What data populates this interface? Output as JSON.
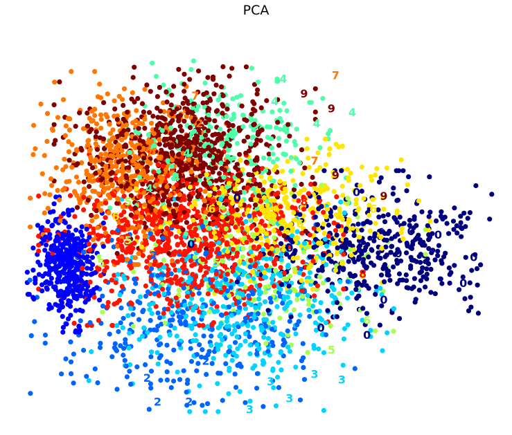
{
  "chart_data": {
    "type": "scatter",
    "title": "PCA",
    "xlabel": "",
    "ylabel": "",
    "axes_visible": false,
    "grid": false,
    "legend": "none",
    "xlim": [
      -1.2,
      1.0
    ],
    "ylim": [
      -0.95,
      0.95
    ],
    "classes": [
      {
        "label": "0",
        "color": "#00007f",
        "center": [
          0.48,
          -0.05
        ],
        "spread": [
          0.27,
          0.16
        ],
        "count": 420
      },
      {
        "label": "1",
        "color": "#0000ff",
        "center": [
          -1.02,
          -0.14
        ],
        "spread": [
          0.07,
          0.14
        ],
        "count": 380
      },
      {
        "label": "2",
        "color": "#0064ff",
        "center": [
          -0.42,
          -0.45
        ],
        "spread": [
          0.33,
          0.22
        ],
        "count": 330
      },
      {
        "label": "3",
        "color": "#00d4ff",
        "center": [
          -0.18,
          -0.36
        ],
        "spread": [
          0.28,
          0.22
        ],
        "count": 420
      },
      {
        "label": "4",
        "color": "#4dffa9",
        "center": [
          -0.25,
          0.52
        ],
        "spread": [
          0.25,
          0.2
        ],
        "count": 240
      },
      {
        "label": "5",
        "color": "#a9ff4d",
        "center": [
          -0.08,
          -0.18
        ],
        "spread": [
          0.3,
          0.18
        ],
        "count": 150
      },
      {
        "label": "6",
        "color": "#ffe600",
        "center": [
          0.02,
          0.12
        ],
        "spread": [
          0.27,
          0.16
        ],
        "count": 400
      },
      {
        "label": "7",
        "color": "#ff7700",
        "center": [
          -0.72,
          0.38
        ],
        "spread": [
          0.18,
          0.2
        ],
        "count": 500
      },
      {
        "label": "8",
        "color": "#ff1300",
        "center": [
          -0.42,
          0.0
        ],
        "spread": [
          0.28,
          0.18
        ],
        "count": 780
      },
      {
        "label": "9",
        "color": "#7f0000",
        "center": [
          -0.45,
          0.44
        ],
        "spread": [
          0.24,
          0.2
        ],
        "count": 780
      }
    ],
    "annotations": [
      {
        "text": "7",
        "x": 0.27,
        "y": 0.88,
        "color": "#ff7700"
      },
      {
        "text": "4",
        "x": 0.02,
        "y": 0.86,
        "color": "#4dffa9"
      },
      {
        "text": "9",
        "x": 0.12,
        "y": 0.78,
        "color": "#7f0000"
      },
      {
        "text": "4",
        "x": -0.02,
        "y": 0.74,
        "color": "#4dffa9"
      },
      {
        "text": "9",
        "x": 0.25,
        "y": 0.7,
        "color": "#7f0000"
      },
      {
        "text": "4",
        "x": 0.35,
        "y": 0.68,
        "color": "#4dffa9"
      },
      {
        "text": "4",
        "x": 0.18,
        "y": 0.62,
        "color": "#4dffa9"
      },
      {
        "text": "7",
        "x": -0.4,
        "y": 0.77,
        "color": "#ff7700"
      },
      {
        "text": "2",
        "x": -0.38,
        "y": 0.62,
        "color": "#ff7700"
      },
      {
        "text": "7",
        "x": -0.62,
        "y": 0.46,
        "color": "#ff7700"
      },
      {
        "text": "4",
        "x": -0.44,
        "y": 0.46,
        "color": "#4dffa9"
      },
      {
        "text": "4",
        "x": -0.49,
        "y": 0.33,
        "color": "#4dffa9"
      },
      {
        "text": "4",
        "x": -0.62,
        "y": 0.27,
        "color": "#4dffa9"
      },
      {
        "text": "7",
        "x": 0.17,
        "y": 0.42,
        "color": "#ff7700"
      },
      {
        "text": "9",
        "x": 0.27,
        "y": 0.34,
        "color": "#7f0000"
      },
      {
        "text": "0",
        "x": 0.37,
        "y": 0.25,
        "color": "#00007f"
      },
      {
        "text": "9",
        "x": 0.5,
        "y": 0.23,
        "color": "#7f0000"
      },
      {
        "text": "6",
        "x": 0.45,
        "y": 0.16,
        "color": "#ffe600"
      },
      {
        "text": "0",
        "x": 0.63,
        "y": 0.04,
        "color": "#00007f"
      },
      {
        "text": "0",
        "x": 0.76,
        "y": 0.02,
        "color": "#00007f"
      },
      {
        "text": "0",
        "x": 0.57,
        "y": -0.08,
        "color": "#00007f"
      },
      {
        "text": "0",
        "x": 0.88,
        "y": -0.24,
        "color": "#00007f"
      },
      {
        "text": "0",
        "x": 0.93,
        "y": -0.1,
        "color": "#00007f"
      },
      {
        "text": "8",
        "x": 0.4,
        "y": -0.19,
        "color": "#ff1300"
      },
      {
        "text": "0",
        "x": 0.5,
        "y": -0.33,
        "color": "#00007f"
      },
      {
        "text": "6",
        "x": 0.42,
        "y": -0.44,
        "color": "#a9ff4d"
      },
      {
        "text": "0",
        "x": 0.42,
        "y": -0.52,
        "color": "#00007f"
      },
      {
        "text": "0",
        "x": 0.2,
        "y": -0.48,
        "color": "#00007f"
      },
      {
        "text": "5",
        "x": 0.25,
        "y": -0.6,
        "color": "#a9ff4d"
      },
      {
        "text": "3",
        "x": 0.3,
        "y": -0.76,
        "color": "#00d4ff"
      },
      {
        "text": "3",
        "x": 0.17,
        "y": -0.73,
        "color": "#00d4ff"
      },
      {
        "text": "3",
        "x": 0.05,
        "y": -0.86,
        "color": "#00d4ff"
      },
      {
        "text": "3",
        "x": -0.04,
        "y": -0.77,
        "color": "#00d4ff"
      },
      {
        "text": "3",
        "x": -0.14,
        "y": -0.92,
        "color": "#00d4ff"
      },
      {
        "text": "2",
        "x": -0.63,
        "y": -0.75,
        "color": "#0064ff"
      },
      {
        "text": "2",
        "x": -0.58,
        "y": -0.88,
        "color": "#0064ff"
      },
      {
        "text": "2",
        "x": -0.43,
        "y": -0.88,
        "color": "#0064ff"
      },
      {
        "text": "2",
        "x": -0.35,
        "y": -0.66,
        "color": "#0064ff"
      },
      {
        "text": "5",
        "x": -0.72,
        "y": -0.01,
        "color": "#a9ff4d"
      },
      {
        "text": "5",
        "x": -0.85,
        "y": -0.13,
        "color": "#a9ff4d"
      },
      {
        "text": "2",
        "x": -0.6,
        "y": -0.09,
        "color": "#0064ff"
      },
      {
        "text": "5",
        "x": -0.3,
        "y": -0.13,
        "color": "#a9ff4d"
      },
      {
        "text": "0",
        "x": -0.42,
        "y": -0.03,
        "color": "#00007f"
      },
      {
        "text": "0",
        "x": -0.2,
        "y": 0.22,
        "color": "#00007f"
      },
      {
        "text": "6",
        "x": -0.32,
        "y": 0.16,
        "color": "#ffe600"
      },
      {
        "text": "5",
        "x": -0.72,
        "y": 0.2,
        "color": "#a9ff4d"
      },
      {
        "text": "6",
        "x": -0.78,
        "y": 0.12,
        "color": "#ffe600"
      },
      {
        "text": "8",
        "x": 0.12,
        "y": 0.2,
        "color": "#ff1300"
      },
      {
        "text": "6",
        "x": 0.1,
        "y": 0.08,
        "color": "#ffe600"
      },
      {
        "text": "0",
        "x": 0.05,
        "y": -0.05,
        "color": "#00007f"
      }
    ]
  }
}
